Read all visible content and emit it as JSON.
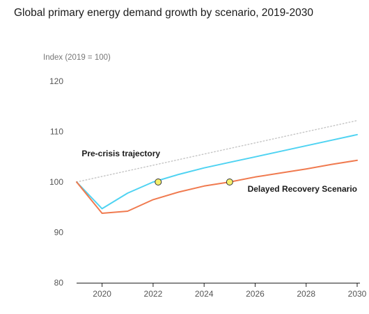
{
  "chart_data": {
    "type": "line",
    "title": "Global primary energy demand growth by scenario, 2019-2030",
    "ylabel": "Index (2019 = 100)",
    "xlabel": "",
    "ylim": [
      80,
      120
    ],
    "xlim": [
      2019,
      2030
    ],
    "yticks": [
      80,
      90,
      100,
      110,
      120
    ],
    "xticks": [
      2020,
      2022,
      2024,
      2026,
      2028,
      2030
    ],
    "grid": false,
    "series": [
      {
        "key": "pre_crisis",
        "color": "#c4c4c4",
        "style": "dotted",
        "x": [
          2019,
          2030
        ],
        "values": [
          100,
          112.2
        ]
      },
      {
        "key": "recovery",
        "color": "#4fd3f2",
        "style": "solid",
        "x": [
          2019,
          2020,
          2021,
          2022,
          2023,
          2024,
          2025,
          2026,
          2027,
          2028,
          2029,
          2030
        ],
        "values": [
          100,
          94.7,
          97.8,
          100.0,
          101.5,
          102.8,
          103.9,
          105.0,
          106.1,
          107.2,
          108.3,
          109.4
        ]
      },
      {
        "key": "delayed",
        "name": "Delayed Recovery Scenario",
        "color": "#f07a4f",
        "style": "solid",
        "x": [
          2019,
          2020,
          2021,
          2022,
          2023,
          2024,
          2025,
          2026,
          2027,
          2028,
          2029,
          2030
        ],
        "values": [
          100,
          93.8,
          94.2,
          96.5,
          98.0,
          99.2,
          100.0,
          101.0,
          101.8,
          102.6,
          103.5,
          104.3
        ]
      }
    ],
    "markers": [
      {
        "x": 2022.2,
        "y": 100,
        "fill": "#f5ef6b",
        "stroke": "#333333"
      },
      {
        "x": 2025.0,
        "y": 100,
        "fill": "#f5ef6b",
        "stroke": "#333333"
      }
    ],
    "annotations": [
      {
        "text": "Pre-crisis trajectory",
        "x": 2019.2,
        "y": 105.1,
        "anchor": "start"
      },
      {
        "text": "Delayed Recovery Scenario",
        "x": 2030.0,
        "y": 98.1,
        "anchor": "end"
      }
    ]
  }
}
